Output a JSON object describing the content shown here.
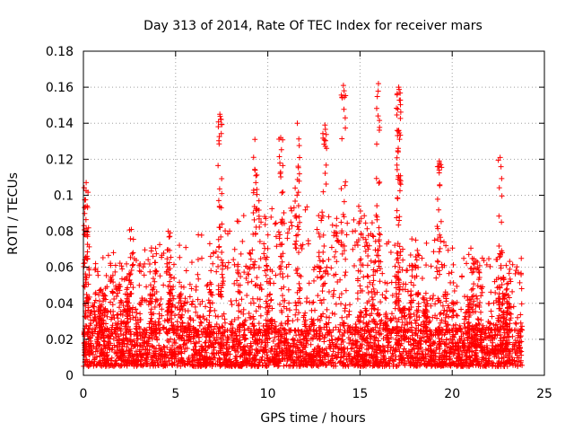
{
  "chart_data": {
    "type": "scatter",
    "title": "Day 313 of 2014, Rate Of TEC Index for receiver mars",
    "xlabel": "GPS time / hours",
    "ylabel": "ROTI / TECUs",
    "xlim": [
      0,
      25
    ],
    "ylim": [
      0,
      0.18
    ],
    "x_ticks": [
      0,
      5,
      10,
      15,
      20,
      25
    ],
    "x_tick_labels": [
      "0",
      "5",
      "10",
      "15",
      "20",
      "25"
    ],
    "y_ticks": [
      0,
      0.02,
      0.04,
      0.06,
      0.08,
      0.1,
      0.12,
      0.14,
      0.16,
      0.18
    ],
    "y_tick_labels": [
      "0",
      "0.02",
      "0.04",
      "0.06",
      "0.08",
      "0.1",
      "0.12",
      "0.14",
      "0.16",
      "0.18"
    ],
    "grid": true,
    "marker": "+",
    "color": "#ff0000",
    "x_data_range": [
      0,
      23.8
    ],
    "baseline_range": [
      0.005,
      0.025
    ],
    "notable_peaks": [
      {
        "x": 0.15,
        "y": 0.107
      },
      {
        "x": 0.2,
        "y": 0.094
      },
      {
        "x": 2.6,
        "y": 0.081
      },
      {
        "x": 4.6,
        "y": 0.08
      },
      {
        "x": 7.4,
        "y": 0.145
      },
      {
        "x": 9.3,
        "y": 0.131
      },
      {
        "x": 10.7,
        "y": 0.132
      },
      {
        "x": 11.6,
        "y": 0.14
      },
      {
        "x": 13.1,
        "y": 0.139
      },
      {
        "x": 14.1,
        "y": 0.161
      },
      {
        "x": 16.0,
        "y": 0.162
      },
      {
        "x": 17.1,
        "y": 0.16
      },
      {
        "x": 17.1,
        "y": 0.136
      },
      {
        "x": 19.3,
        "y": 0.119
      },
      {
        "x": 22.6,
        "y": 0.121
      }
    ]
  }
}
